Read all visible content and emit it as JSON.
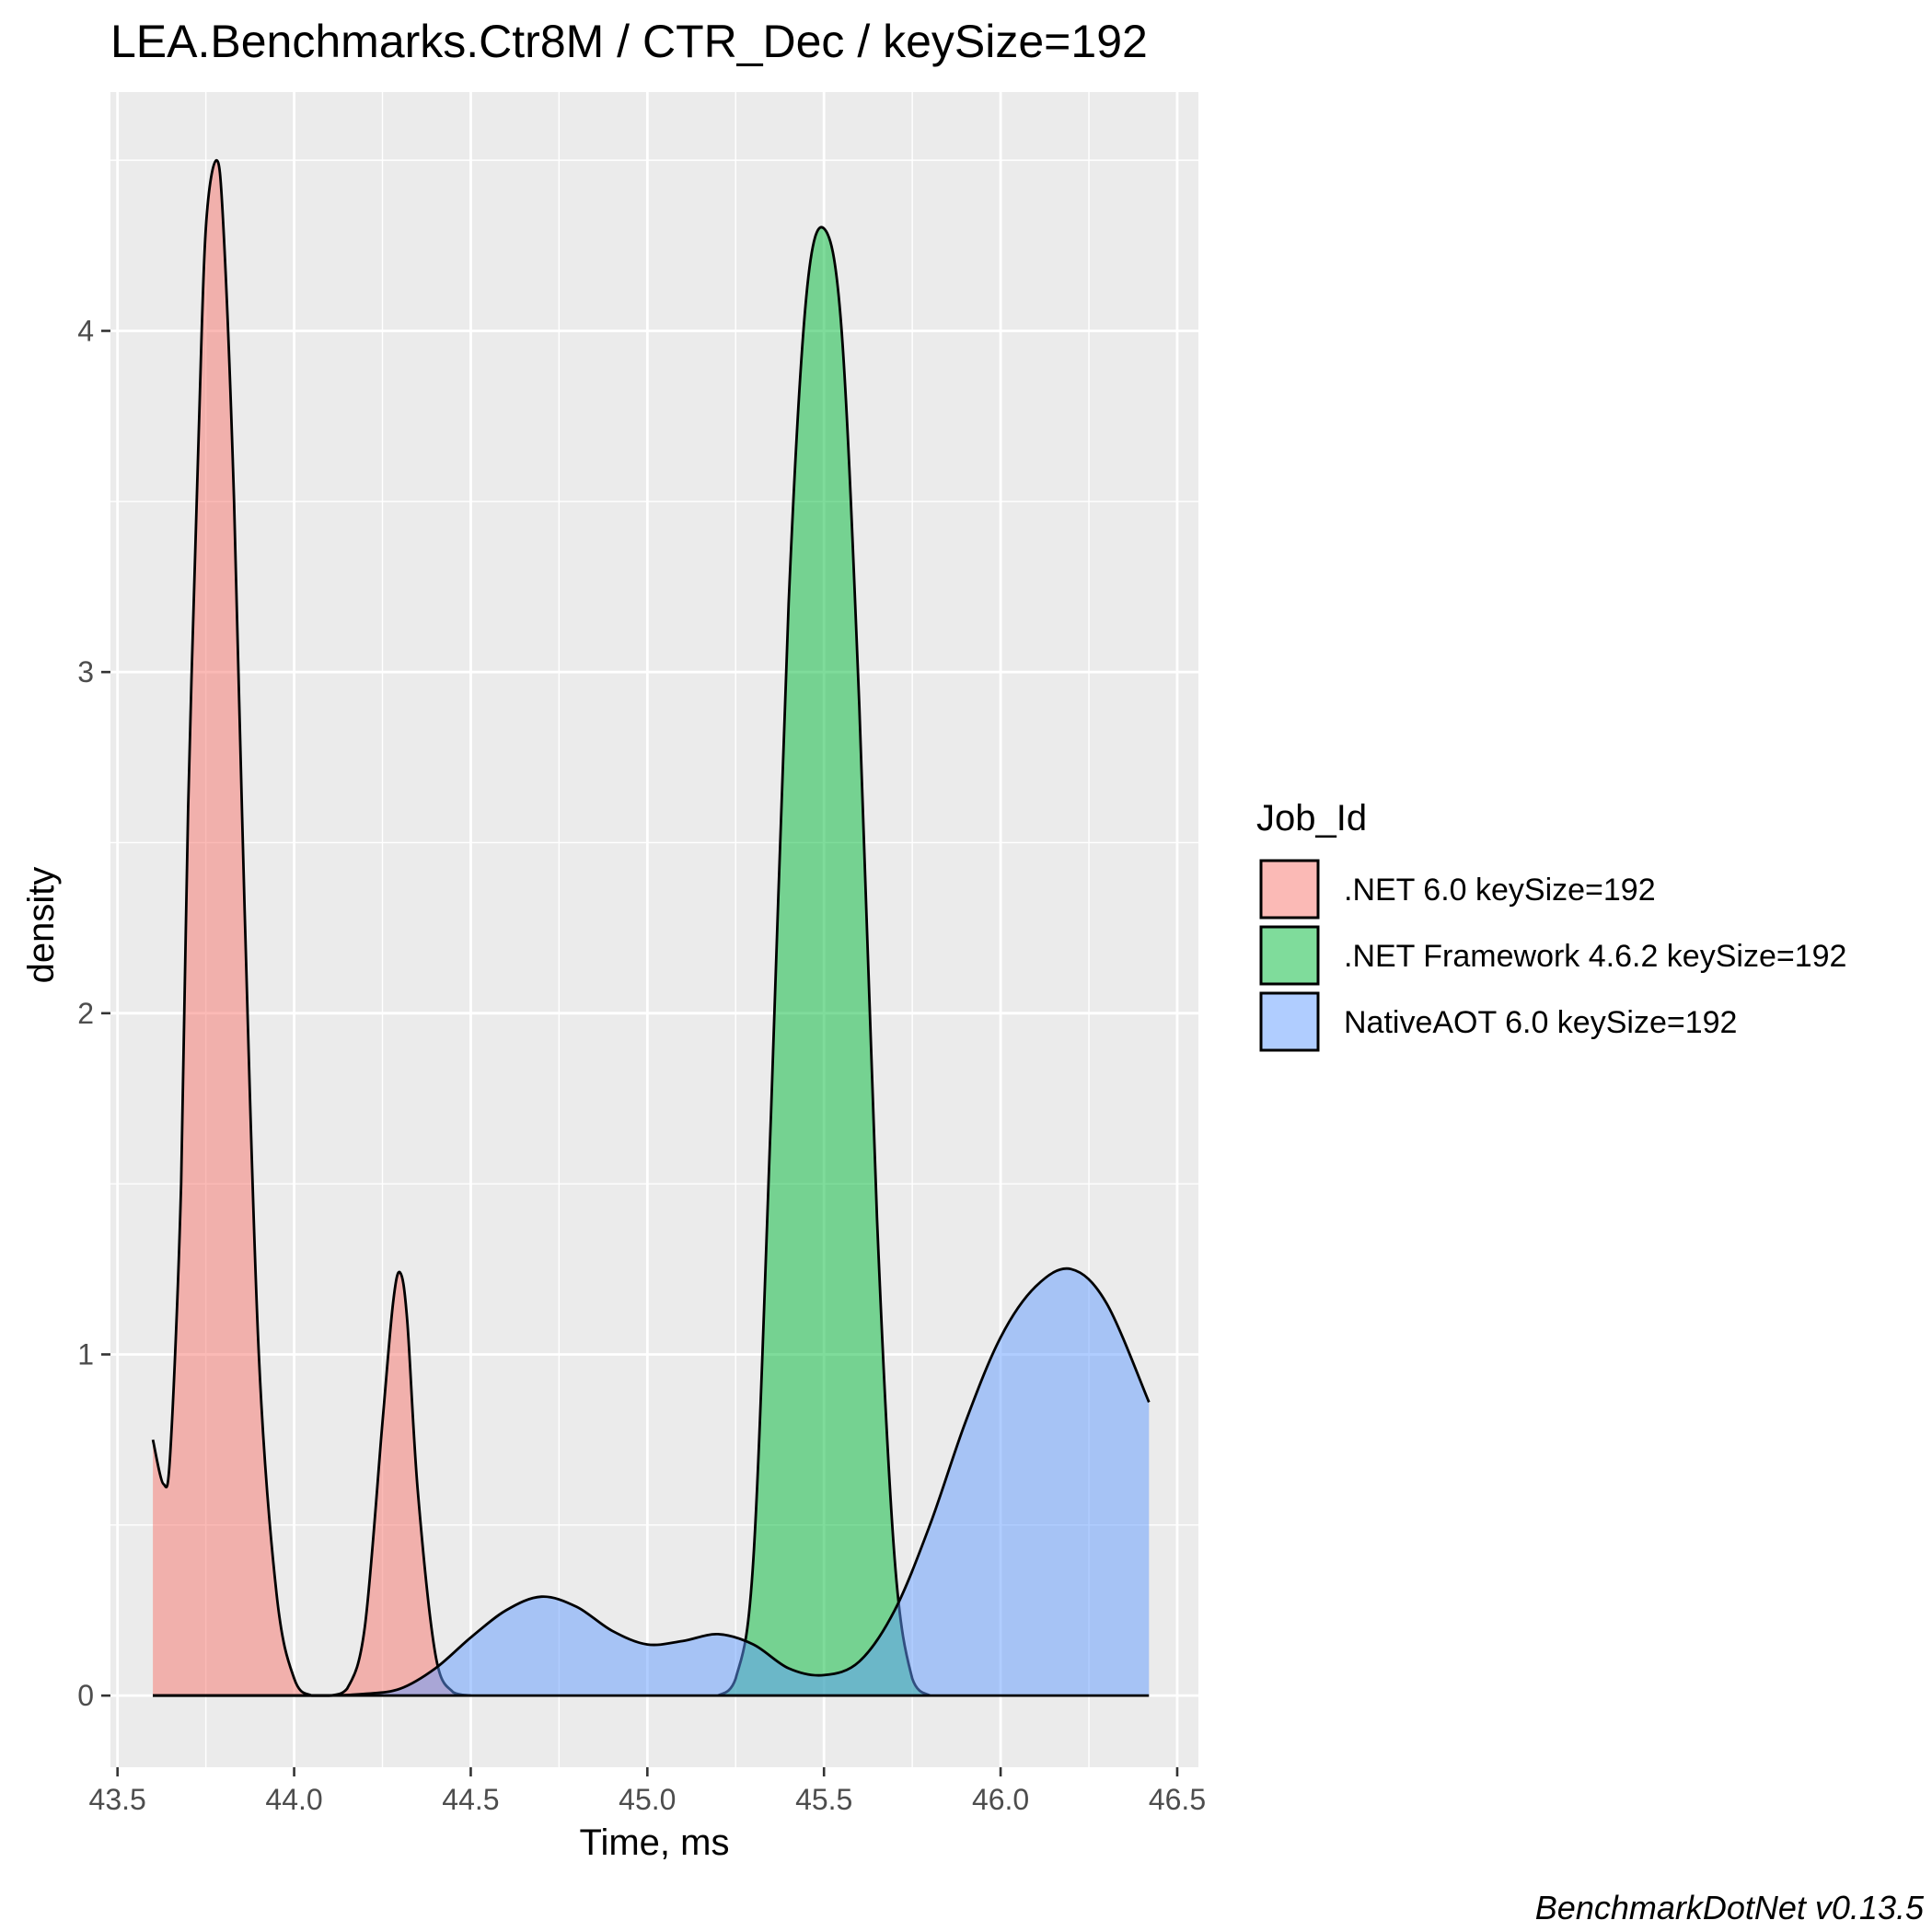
{
  "chart_data": {
    "type": "area",
    "title": "LEA.Benchmarks.Ctr8M / CTR_Dec / keySize=192",
    "xlabel": "Time, ms",
    "ylabel": "density",
    "caption": "BenchmarkDotNet v0.13.5",
    "xlim": [
      43.48,
      46.56
    ],
    "ylim": [
      -0.21,
      4.7
    ],
    "x_ticks": [
      43.5,
      44.0,
      44.5,
      45.0,
      45.5,
      46.0,
      46.5
    ],
    "x_tick_labels": [
      "43.5",
      "44.0",
      "44.5",
      "45.0",
      "45.5",
      "46.0",
      "46.5"
    ],
    "y_ticks": [
      0,
      1,
      2,
      3,
      4
    ],
    "y_tick_labels": [
      "0",
      "1",
      "2",
      "3",
      "4"
    ],
    "grid": true,
    "panel_background": "#ebebeb",
    "legend": {
      "title": "Job_Id",
      "position": "right",
      "entries": [
        {
          "label": ".NET 6.0 keySize=192",
          "color": "#F8766D"
        },
        {
          "label": ".NET Framework 4.6.2 keySize=192",
          "color": "#00BA38"
        },
        {
          "label": "NativeAOT 6.0 keySize=192",
          "color": "#619CFF"
        }
      ]
    },
    "series": [
      {
        "name": ".NET 6.0 keySize=192",
        "color": "#F8766D",
        "x": [
          43.6,
          43.63,
          43.65,
          43.68,
          43.7,
          43.73,
          43.75,
          43.78,
          43.8,
          43.83,
          43.86,
          43.9,
          43.95,
          44.0,
          44.05,
          44.1,
          44.15,
          44.2,
          44.25,
          44.28,
          44.3,
          44.32,
          44.35,
          44.4,
          44.45,
          44.5
        ],
        "y": [
          0.75,
          0.62,
          0.72,
          1.5,
          2.6,
          3.7,
          4.3,
          4.5,
          4.3,
          3.5,
          2.3,
          1.0,
          0.3,
          0.05,
          0.0,
          0.0,
          0.02,
          0.2,
          0.8,
          1.15,
          1.24,
          1.1,
          0.6,
          0.12,
          0.01,
          0.0
        ]
      },
      {
        "name": ".NET Framework 4.6.2 keySize=192",
        "color": "#00BA38",
        "x": [
          45.2,
          45.25,
          45.3,
          45.35,
          45.4,
          45.45,
          45.5,
          45.55,
          45.6,
          45.65,
          45.7,
          45.75,
          45.8
        ],
        "y": [
          0.0,
          0.05,
          0.4,
          1.7,
          3.2,
          4.1,
          4.3,
          4.0,
          2.9,
          1.4,
          0.4,
          0.05,
          0.0
        ]
      },
      {
        "name": "NativeAOT 6.0 keySize=192",
        "color": "#619CFF",
        "x": [
          43.6,
          43.8,
          44.0,
          44.1,
          44.2,
          44.3,
          44.4,
          44.5,
          44.6,
          44.7,
          44.8,
          44.9,
          45.0,
          45.1,
          45.2,
          45.3,
          45.4,
          45.5,
          45.6,
          45.7,
          45.8,
          45.9,
          46.0,
          46.1,
          46.2,
          46.3,
          46.42
        ],
        "y": [
          0.0,
          0.0,
          0.0,
          0.0,
          0.005,
          0.02,
          0.08,
          0.17,
          0.25,
          0.29,
          0.26,
          0.19,
          0.15,
          0.16,
          0.18,
          0.15,
          0.08,
          0.06,
          0.1,
          0.25,
          0.5,
          0.8,
          1.05,
          1.2,
          1.25,
          1.15,
          0.86
        ]
      }
    ]
  }
}
